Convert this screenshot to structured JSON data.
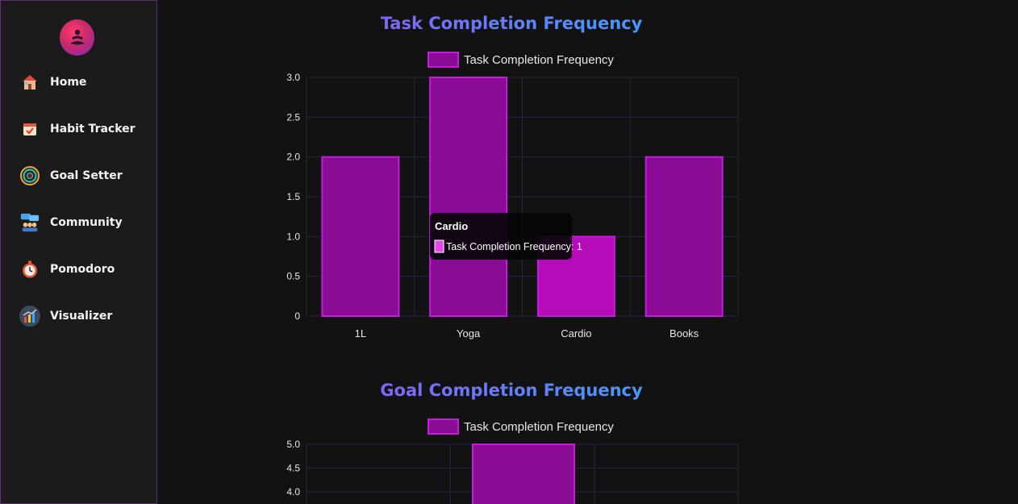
{
  "sidebar": {
    "items": [
      {
        "label": "Home",
        "icon": "house-icon"
      },
      {
        "label": "Habit Tracker",
        "icon": "calendar-check-icon"
      },
      {
        "label": "Goal Setter",
        "icon": "target-icon"
      },
      {
        "label": "Community",
        "icon": "people-chat-icon"
      },
      {
        "label": "Pomodoro",
        "icon": "stopwatch-icon"
      },
      {
        "label": "Visualizer",
        "icon": "bar-chart-icon"
      }
    ]
  },
  "colors": {
    "bar_fill": "#8a0c95",
    "bar_border": "#c21ddb",
    "bar_active": "#b60bb9",
    "grid": "#2a2140",
    "axis_text": "#e8e8e8"
  },
  "tooltip": {
    "title": "Cardio",
    "body": "Task Completion Frequency: 1"
  },
  "chart_data": [
    {
      "type": "bar",
      "title": "Task Completion Frequency",
      "legend": "Task Completion Frequency",
      "legend_position": "top",
      "categories": [
        "1L",
        "Yoga",
        "Cardio",
        "Books"
      ],
      "series": [
        {
          "name": "Task Completion Frequency",
          "values": [
            2,
            3,
            1,
            2
          ]
        }
      ],
      "ylim": [
        0,
        3
      ],
      "yticks": [
        "0",
        "0.5",
        "1.0",
        "1.5",
        "2.0",
        "2.5",
        "3.0"
      ],
      "highlighted": "Cardio",
      "grid": true
    },
    {
      "type": "bar",
      "title": "Goal Completion Frequency",
      "legend": "Task Completion Frequency",
      "legend_position": "top",
      "series": [
        {
          "name": "Task Completion Frequency",
          "values": [
            5
          ]
        }
      ],
      "yticks_visible": [
        "4.0",
        "4.5",
        "5.0"
      ],
      "ylim_top": 5,
      "grid": true
    }
  ]
}
